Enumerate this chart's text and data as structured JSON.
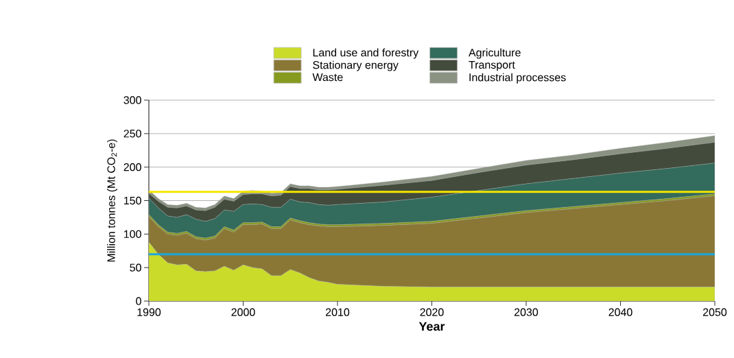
{
  "chart_data": {
    "type": "area",
    "stacked": true,
    "xlabel": "Year",
    "ylabel": "Million tonnes (Mt CO$_{2}$-e)",
    "x": [
      1990,
      1991,
      1992,
      1993,
      1994,
      1995,
      1996,
      1997,
      1998,
      1999,
      2000,
      2001,
      2002,
      2003,
      2004,
      2005,
      2006,
      2007,
      2008,
      2009,
      2010,
      2015,
      2020,
      2025,
      2030,
      2035,
      2040,
      2045,
      2050
    ],
    "series": [
      {
        "name": "Land use and forestry",
        "color": "#cbdb2a",
        "values": [
          88,
          70,
          57,
          54,
          55,
          45,
          44,
          45,
          52,
          46,
          54,
          50,
          48,
          38,
          38,
          47,
          42,
          35,
          30,
          28,
          25,
          22,
          21,
          21,
          21,
          21,
          21,
          21,
          21
        ]
      },
      {
        "name": "Stationary energy",
        "color": "#8a7736",
        "values": [
          38,
          41,
          43,
          44,
          46,
          48,
          47,
          49,
          56,
          57,
          60,
          64,
          67,
          70,
          70,
          74,
          75,
          79,
          82,
          83,
          86,
          91,
          95,
          103,
          111,
          117,
          123,
          129,
          136
        ]
      },
      {
        "name": "Waste",
        "color": "#869a1f",
        "values": [
          3,
          3,
          3,
          3,
          3,
          3,
          3,
          3,
          3,
          3,
          3,
          3,
          3,
          3,
          3,
          3,
          3,
          3,
          3,
          3,
          3,
          3,
          3,
          3,
          3,
          3,
          3,
          3,
          3
        ]
      },
      {
        "name": "Agriculture",
        "color": "#336b5c",
        "values": [
          25,
          25,
          24,
          24,
          25,
          26,
          25,
          26,
          25,
          28,
          27,
          28,
          26,
          29,
          29,
          28,
          28,
          30,
          29,
          29,
          30,
          32,
          36,
          38,
          40,
          42,
          44,
          45,
          46
        ]
      },
      {
        "name": "Transport",
        "color": "#434c3c",
        "values": [
          7,
          10,
          13,
          14,
          13,
          14,
          16,
          17,
          16,
          15,
          15,
          15,
          16,
          17,
          18,
          19,
          20,
          21,
          22,
          23,
          23,
          25,
          25,
          27,
          28,
          28,
          29,
          30,
          31
        ]
      },
      {
        "name": "Industrial processes",
        "color": "#8a9282",
        "values": [
          5,
          4,
          4,
          4,
          4,
          4,
          4,
          4,
          5,
          4,
          5,
          5,
          4,
          4,
          4,
          4,
          4,
          4,
          4,
          4,
          4,
          5,
          6,
          6,
          7,
          7,
          8,
          9,
          10
        ]
      }
    ],
    "xlim": [
      1990,
      2050
    ],
    "ylim": [
      0,
      300
    ],
    "xticks": [
      1990,
      2000,
      2010,
      2020,
      2030,
      2040,
      2050
    ],
    "yticks": [
      0,
      50,
      100,
      150,
      200,
      250,
      300
    ],
    "grid": "y",
    "legend": "top",
    "ref_lines": [
      {
        "axis": "y",
        "value": 163,
        "color": "#f5e600"
      },
      {
        "axis": "y",
        "value": 70,
        "color": "#1aa7e0"
      }
    ]
  }
}
